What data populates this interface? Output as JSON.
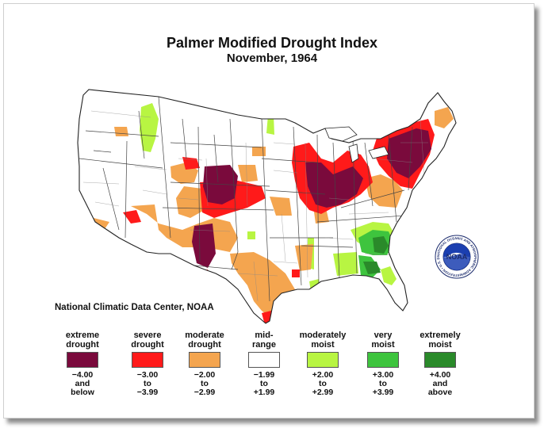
{
  "title": "Palmer Modified Drought Index",
  "subtitle": "November, 1964",
  "source": "National Climatic Data Center, NOAA",
  "colors": {
    "extreme_drought": "#7a0a3c",
    "severe_drought": "#ff1a1a",
    "moderate_drought": "#f4a54f",
    "mid_range": "#ffffff",
    "moderately_moist": "#b8f542",
    "very_moist": "#3ec43e",
    "extremely_moist": "#2a8a2a"
  },
  "legend": [
    {
      "label": [
        "extreme",
        "drought"
      ],
      "range": [
        "−4.00",
        "and",
        "below"
      ],
      "color": "#7a0a3c"
    },
    {
      "label": [
        "severe",
        "drought"
      ],
      "range": [
        "−3.00",
        "to",
        "−3.99"
      ],
      "color": "#ff1a1a"
    },
    {
      "label": [
        "moderate",
        "drought"
      ],
      "range": [
        "−2.00",
        "to",
        "−2.99"
      ],
      "color": "#f4a54f"
    },
    {
      "label": [
        "mid-",
        "range"
      ],
      "range": [
        "−1.99",
        "to",
        "+1.99"
      ],
      "color": "#ffffff"
    },
    {
      "label": [
        "moderately",
        "moist"
      ],
      "range": [
        "+2.00",
        "to",
        "+2.99"
      ],
      "color": "#b8f542"
    },
    {
      "label": [
        "very",
        "moist"
      ],
      "range": [
        "+3.00",
        "to",
        "+3.99"
      ],
      "color": "#3ec43e"
    },
    {
      "label": [
        "extremely",
        "moist"
      ],
      "range": [
        "+4.00",
        "and",
        "above"
      ],
      "color": "#2a8a2a"
    }
  ],
  "logo": {
    "text": "NOAA",
    "ring_text": "NATIONAL OCEANIC AND ATMOSPHERIC ADMINISTRATION • U.S. DEPARTMENT OF COMMERCE •"
  }
}
